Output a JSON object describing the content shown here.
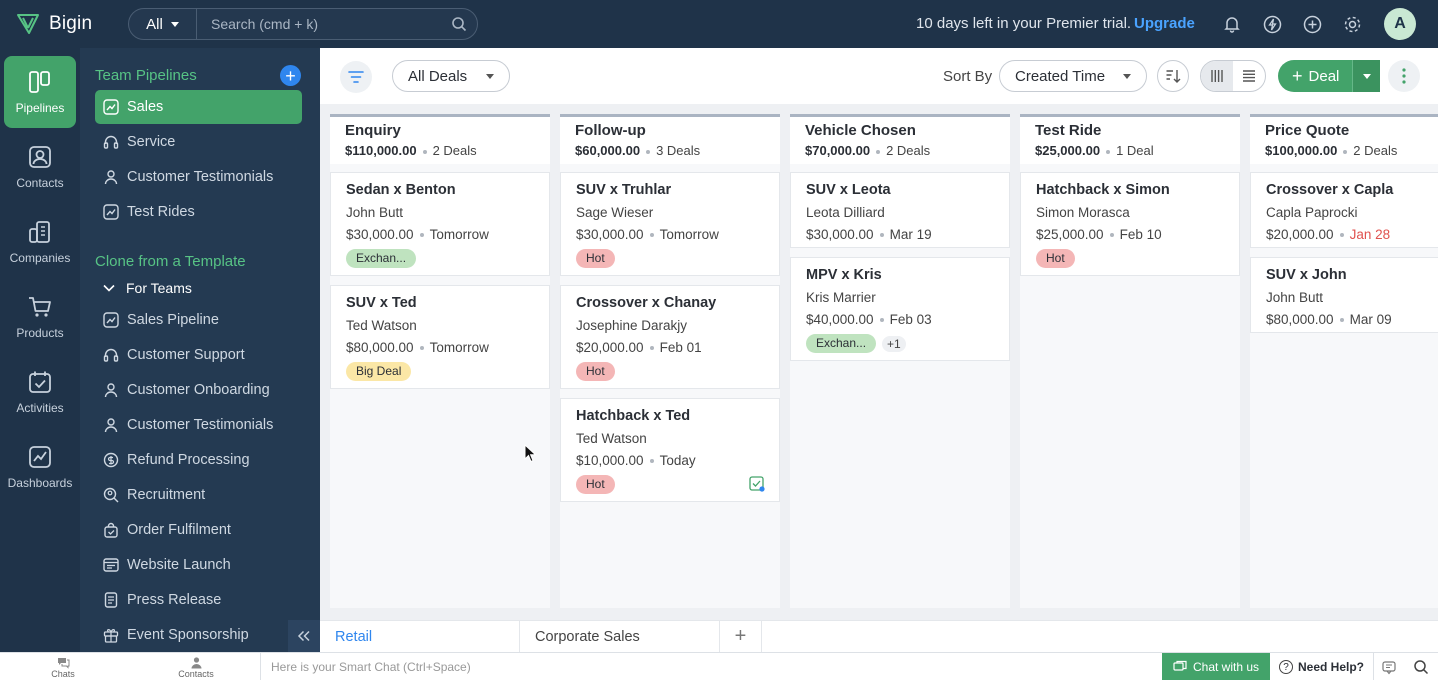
{
  "app": {
    "name": "Bigin",
    "search_scope": "All",
    "search_placeholder": "Search (cmd + k)",
    "trial_text": "10 days left in your Premier trial.",
    "upgrade_label": "Upgrade",
    "avatar_initial": "A",
    "icons": [
      "bell-icon",
      "lightning-icon",
      "add-circle-icon",
      "gear-icon"
    ]
  },
  "rail": [
    {
      "label": "Pipelines",
      "icon": "pipelines-icon",
      "active": true
    },
    {
      "label": "Contacts",
      "icon": "contact-icon",
      "active": false
    },
    {
      "label": "Companies",
      "icon": "building-icon",
      "active": false
    },
    {
      "label": "Products",
      "icon": "cart-icon",
      "active": false
    },
    {
      "label": "Activities",
      "icon": "calendar-check-icon",
      "active": false
    },
    {
      "label": "Dashboards",
      "icon": "chart-icon",
      "active": false
    }
  ],
  "sidebar": {
    "team_heading": "Team Pipelines",
    "team_items": [
      {
        "label": "Sales",
        "active": true
      },
      {
        "label": "Service",
        "active": false
      },
      {
        "label": "Customer Testimonials",
        "active": false
      },
      {
        "label": "Test Rides",
        "active": false
      }
    ],
    "clone_heading": "Clone from a Template",
    "for_teams_label": "For Teams",
    "template_items": [
      "Sales Pipeline",
      "Customer Support",
      "Customer Onboarding",
      "Customer Testimonials",
      "Refund Processing",
      "Recruitment",
      "Order Fulfilment",
      "Website Launch",
      "Press Release",
      "Event Sponsorship"
    ]
  },
  "toolbar": {
    "view_label": "All Deals",
    "sort_by_label": "Sort By",
    "sort_value": "Created Time",
    "deal_button_label": "Deal"
  },
  "stages": [
    {
      "name": "Enquiry",
      "amount": "$110,000.00",
      "count": "2 Deals",
      "deals": [
        {
          "title": "Sedan x Benton",
          "contact": "John Butt",
          "amount": "$30,000.00",
          "due": "Tomorrow",
          "due_overdue": false,
          "tags": [
            {
              "label": "Exchan...",
              "color": "#bfe3bf"
            }
          ],
          "more": ""
        },
        {
          "title": "SUV x Ted",
          "contact": "Ted Watson",
          "amount": "$80,000.00",
          "due": "Tomorrow",
          "due_overdue": false,
          "tags": [
            {
              "label": "Big Deal",
              "color": "#fbe7a6"
            }
          ],
          "more": ""
        }
      ]
    },
    {
      "name": "Follow-up",
      "amount": "$60,000.00",
      "count": "3 Deals",
      "deals": [
        {
          "title": "SUV x Truhlar",
          "contact": "Sage Wieser",
          "amount": "$30,000.00",
          "due": "Tomorrow",
          "due_overdue": false,
          "tags": [
            {
              "label": "Hot",
              "color": "#f4b6b6"
            }
          ],
          "more": ""
        },
        {
          "title": "Crossover x Chanay",
          "contact": "Josephine Darakjy",
          "amount": "$20,000.00",
          "due": "Feb 01",
          "due_overdue": false,
          "tags": [
            {
              "label": "Hot",
              "color": "#f4b6b6"
            }
          ],
          "more": ""
        },
        {
          "title": "Hatchback x Ted",
          "contact": "Ted Watson",
          "amount": "$10,000.00",
          "due": "Today",
          "due_overdue": false,
          "tags": [
            {
              "label": "Hot",
              "color": "#f4b6b6"
            }
          ],
          "more": "",
          "task_flag": true
        }
      ]
    },
    {
      "name": "Vehicle Chosen",
      "amount": "$70,000.00",
      "count": "2 Deals",
      "deals": [
        {
          "title": "SUV x Leota",
          "contact": "Leota Dilliard",
          "amount": "$30,000.00",
          "due": "Mar 19",
          "due_overdue": false,
          "tags": [],
          "more": ""
        },
        {
          "title": "MPV x Kris",
          "contact": "Kris Marrier",
          "amount": "$40,000.00",
          "due": "Feb 03",
          "due_overdue": false,
          "tags": [
            {
              "label": "Exchan...",
              "color": "#bfe3bf"
            }
          ],
          "more": "+1"
        }
      ]
    },
    {
      "name": "Test Ride",
      "amount": "$25,000.00",
      "count": "1 Deal",
      "deals": [
        {
          "title": "Hatchback x Simon",
          "contact": "Simon Morasca",
          "amount": "$25,000.00",
          "due": "Feb 10",
          "due_overdue": false,
          "tags": [
            {
              "label": "Hot",
              "color": "#f4b6b6"
            }
          ],
          "more": ""
        }
      ]
    },
    {
      "name": "Price Quote",
      "amount": "$100,000.00",
      "count": "2 Deals",
      "deals": [
        {
          "title": "Crossover x Capla",
          "contact": "Capla Paprocki",
          "amount": "$20,000.00",
          "due": "Jan 28",
          "due_overdue": true,
          "tags": [],
          "more": ""
        },
        {
          "title": "SUV x John",
          "contact": "John Butt",
          "amount": "$80,000.00",
          "due": "Mar 09",
          "due_overdue": false,
          "tags": [],
          "more": ""
        }
      ]
    }
  ],
  "board_tabs": [
    {
      "label": "Retail",
      "active": true
    },
    {
      "label": "Corporate Sales",
      "active": false
    }
  ],
  "statusbar": {
    "chats_label": "Chats",
    "contacts_label": "Contacts",
    "smart_chat_placeholder": "Here is your Smart Chat (Ctrl+Space)",
    "chat_with_us_label": "Chat with us",
    "need_help_label": "Need Help?"
  }
}
